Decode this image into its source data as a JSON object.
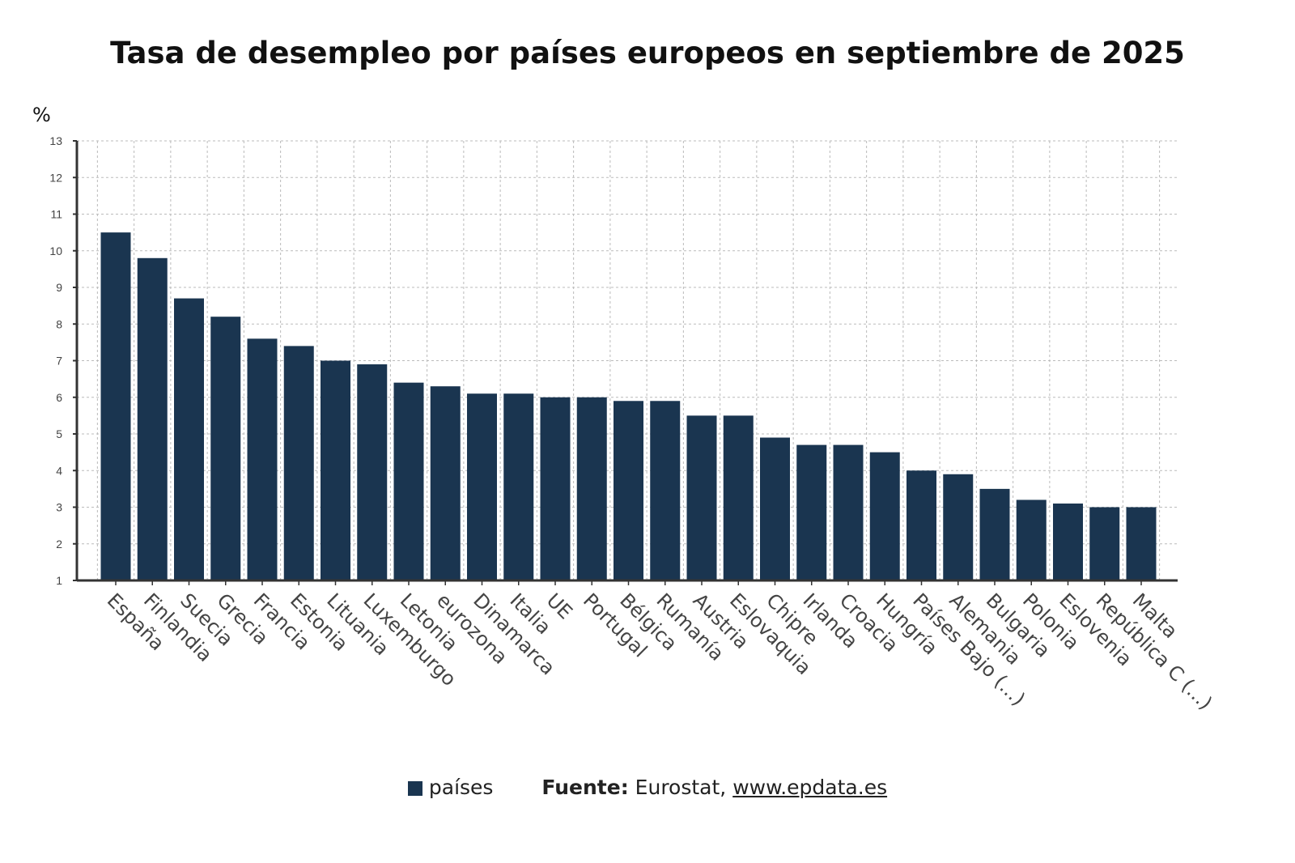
{
  "chart_data": {
    "type": "bar",
    "title": "Tasa de desempleo por países europeos en septiembre de 2025",
    "ylabel": "%",
    "xlabel": "",
    "ylim": [
      1,
      13
    ],
    "yticks": [
      1,
      2,
      3,
      4,
      5,
      6,
      7,
      8,
      9,
      10,
      11,
      12,
      13
    ],
    "grid": true,
    "legend_position": "bottom",
    "bar_color": "#1a3550",
    "categories": [
      "España",
      "Finlandia",
      "Suecia",
      "Grecia",
      "Francia",
      "Estonia",
      "Lituania",
      "Luxemburgo",
      "Letonia",
      "eurozona",
      "Dinamarca",
      "Italia",
      "UE",
      "Portugal",
      "Bélgica",
      "Rumanía",
      "Austria",
      "Eslovaquia",
      "Chipre",
      "Irlanda",
      "Croacia",
      "Hungría",
      "Países Bajo (...)",
      "Alemania",
      "Bulgaria",
      "Polonia",
      "Eslovenia",
      "República C (...)",
      "Malta"
    ],
    "series": [
      {
        "name": "países",
        "values": [
          10.5,
          9.8,
          8.7,
          8.2,
          7.6,
          7.4,
          7.0,
          6.9,
          6.4,
          6.3,
          6.1,
          6.1,
          6.0,
          6.0,
          5.9,
          5.9,
          5.5,
          5.5,
          4.9,
          4.7,
          4.7,
          4.5,
          4.0,
          3.9,
          3.5,
          3.2,
          3.1,
          3.0,
          3.0
        ]
      }
    ]
  },
  "footer": {
    "legend_label": "países",
    "source_label": "Fuente:",
    "source_text": "Eurostat,",
    "source_link": "www.epdata.es"
  }
}
